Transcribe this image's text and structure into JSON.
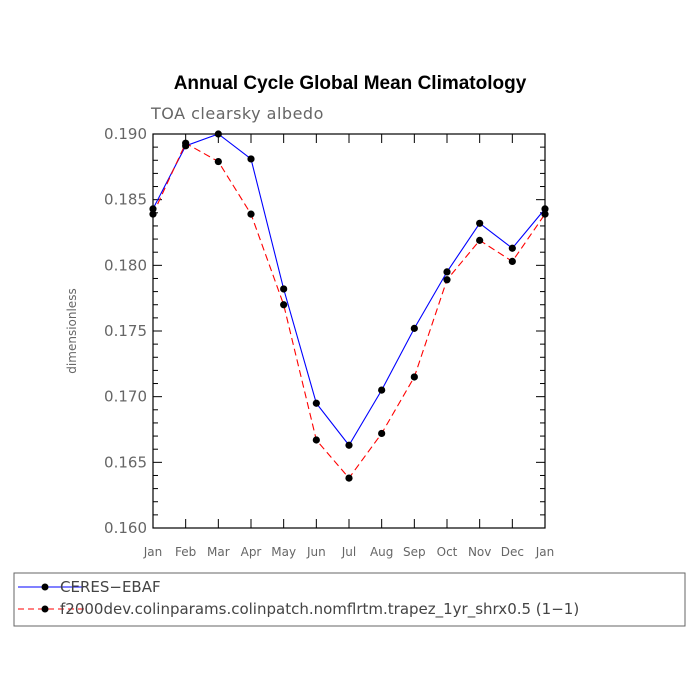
{
  "chart_data": {
    "type": "line",
    "title": "Annual Cycle Global Mean Climatology",
    "subtitle": "TOA clearsky albedo",
    "xlabel": "",
    "ylabel": "dimensionless",
    "categories": [
      "Jan",
      "Feb",
      "Mar",
      "Apr",
      "May",
      "Jun",
      "Jul",
      "Aug",
      "Sep",
      "Oct",
      "Nov",
      "Dec",
      "Jan"
    ],
    "ylim": [
      0.16,
      0.19
    ],
    "yticks": [
      "0.160",
      "0.165",
      "0.170",
      "0.175",
      "0.180",
      "0.185",
      "0.190"
    ],
    "series": [
      {
        "name": "CERES−EBAF",
        "color": "#0000ff",
        "dash": "solid",
        "values": [
          0.1843,
          0.1891,
          0.19,
          0.1881,
          0.1782,
          0.1695,
          0.1663,
          0.1705,
          0.1752,
          0.1795,
          0.1832,
          0.1813,
          0.1843
        ]
      },
      {
        "name": "f2000dev.colinparams.colinpatch.nomflrtm.trapez_1yr_shrx0.5 (1−1)",
        "color": "#ff0000",
        "dash": "dashed",
        "values": [
          0.1839,
          0.1893,
          0.1879,
          0.1839,
          0.177,
          0.1667,
          0.1638,
          0.1672,
          0.1715,
          0.1789,
          0.1819,
          0.1803,
          0.1839
        ]
      }
    ]
  }
}
